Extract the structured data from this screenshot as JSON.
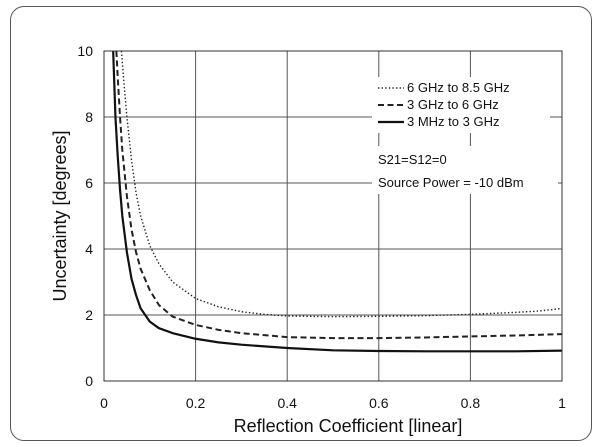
{
  "chart_data": {
    "type": "line",
    "xlabel": "Reflection Coefficient [linear]",
    "ylabel": "Uncertainty [degrees]",
    "xlim": [
      0,
      1
    ],
    "ylim": [
      0,
      10
    ],
    "xticks": [
      0,
      0.2,
      0.4,
      0.6,
      0.8,
      1
    ],
    "xtick_labels": [
      "0",
      "0.2",
      "0.4",
      "0.6",
      "0.8",
      "1"
    ],
    "yticks": [
      0,
      2,
      4,
      6,
      8,
      10
    ],
    "ytick_labels": [
      "0",
      "2",
      "4",
      "6",
      "8",
      "10"
    ],
    "grid": true,
    "legend_position": "top-right",
    "annotations": [
      "S21=S12=0",
      "Source Power = -10 dBm"
    ],
    "series": [
      {
        "name": "6 GHz to 8.5 GHz",
        "style": "dotted",
        "color": "#222222",
        "x": [
          0.038,
          0.045,
          0.05,
          0.06,
          0.07,
          0.08,
          0.1,
          0.12,
          0.15,
          0.2,
          0.25,
          0.3,
          0.35,
          0.4,
          0.5,
          0.6,
          0.7,
          0.8,
          0.9,
          0.95,
          1.0
        ],
        "y": [
          10,
          8.8,
          8.0,
          6.7,
          5.7,
          5.0,
          4.1,
          3.55,
          3.0,
          2.5,
          2.25,
          2.1,
          2.02,
          1.97,
          1.95,
          1.96,
          1.98,
          2.02,
          2.08,
          2.12,
          2.2
        ]
      },
      {
        "name": "3 GHz to 6 GHz",
        "style": "dashed",
        "color": "#222222",
        "x": [
          0.027,
          0.03,
          0.035,
          0.04,
          0.05,
          0.06,
          0.07,
          0.08,
          0.1,
          0.12,
          0.15,
          0.2,
          0.25,
          0.3,
          0.4,
          0.5,
          0.6,
          0.7,
          0.8,
          0.9,
          1.0
        ],
        "y": [
          10,
          9.2,
          8.0,
          7.0,
          5.6,
          4.6,
          3.9,
          3.4,
          2.75,
          2.3,
          1.95,
          1.7,
          1.55,
          1.45,
          1.33,
          1.3,
          1.3,
          1.32,
          1.35,
          1.38,
          1.42
        ]
      },
      {
        "name": "3 MHz to 3 GHz",
        "style": "solid",
        "color": "#111111",
        "x": [
          0.02,
          0.022,
          0.025,
          0.03,
          0.035,
          0.04,
          0.05,
          0.06,
          0.07,
          0.08,
          0.1,
          0.12,
          0.15,
          0.2,
          0.25,
          0.3,
          0.4,
          0.5,
          0.6,
          0.7,
          0.8,
          0.9,
          1.0
        ],
        "y": [
          10,
          9.2,
          8.0,
          6.8,
          5.8,
          5.0,
          3.9,
          3.1,
          2.6,
          2.2,
          1.8,
          1.6,
          1.45,
          1.28,
          1.17,
          1.1,
          1.0,
          0.93,
          0.91,
          0.9,
          0.9,
          0.9,
          0.92
        ]
      }
    ]
  }
}
